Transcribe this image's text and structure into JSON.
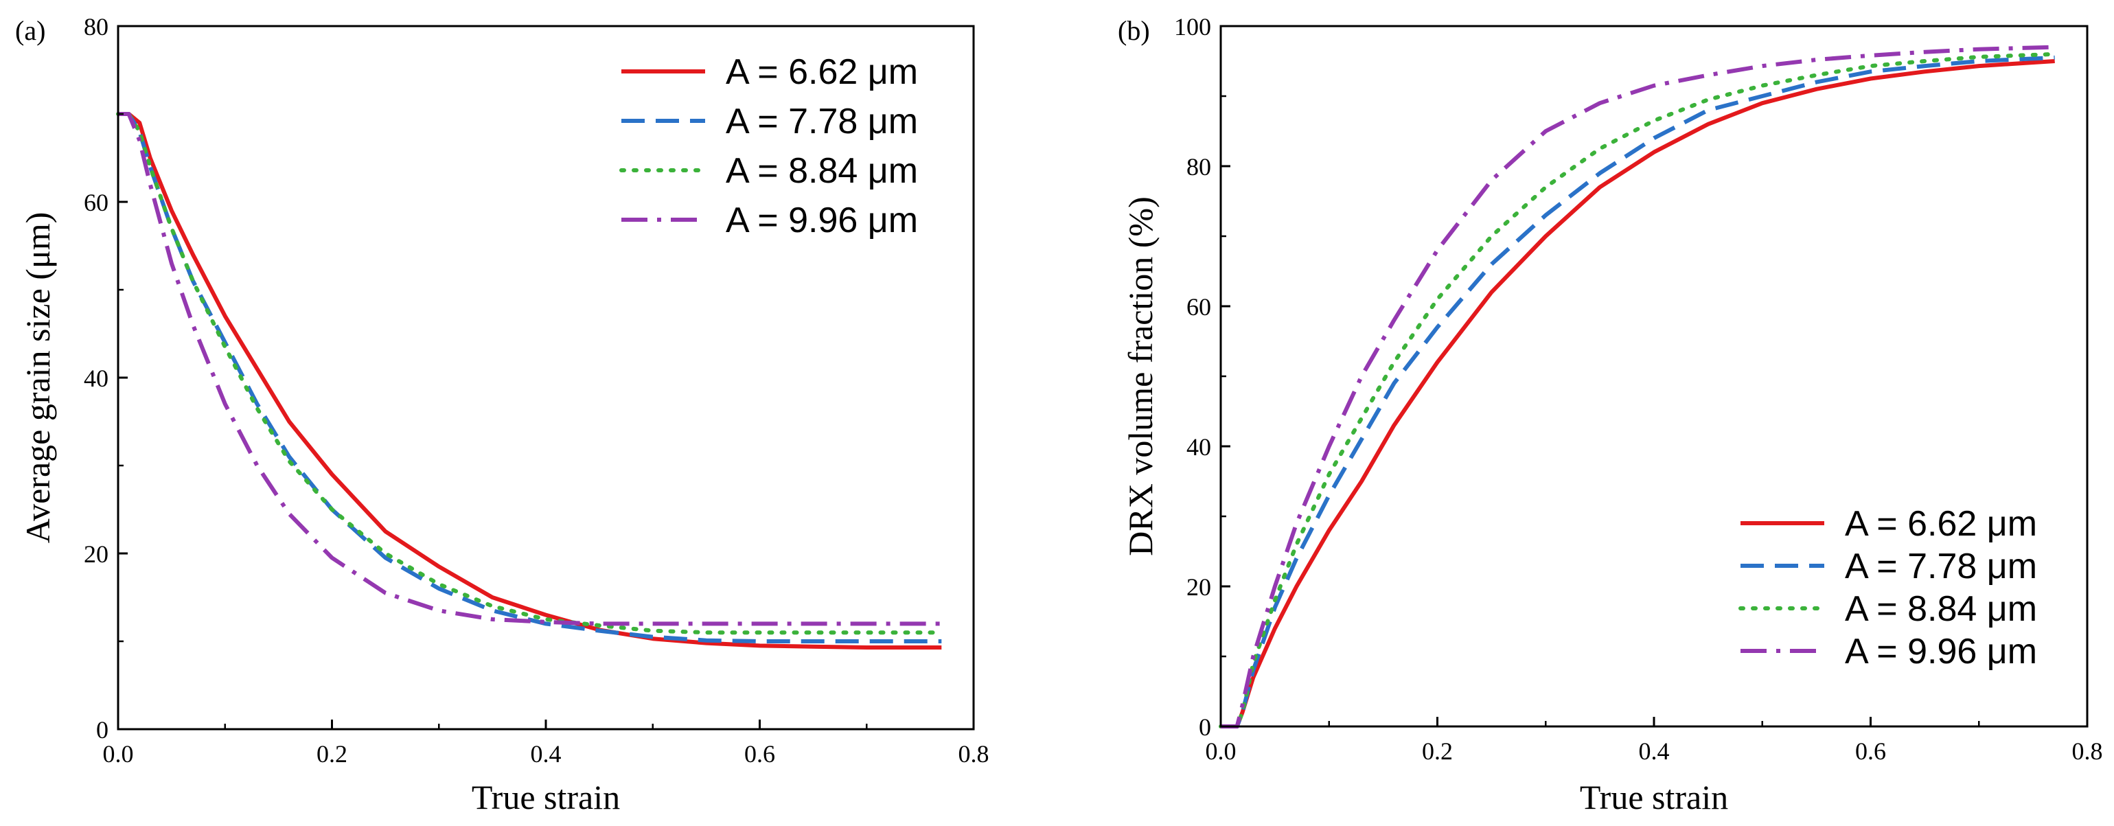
{
  "chart_data": [
    {
      "type": "line",
      "panel_label": "(a)",
      "xlabel": "True strain",
      "ylabel": "Average grain size (μm)",
      "xlim": [
        0,
        0.8
      ],
      "ylim": [
        0,
        80
      ],
      "xticks": [
        0,
        0.2,
        0.4,
        0.6,
        0.8
      ],
      "xtick_labels": [
        "0.0",
        "0.2",
        "0.4",
        "0.6",
        "0.8"
      ],
      "yticks": [
        0,
        20,
        40,
        60,
        80
      ],
      "ytick_labels": [
        "0",
        "20",
        "40",
        "60",
        "80"
      ],
      "grid": false,
      "legend_position": "top-right",
      "series": [
        {
          "name": "A = 6.62 μm",
          "color": "#e3191c",
          "dash": "solid",
          "x": [
            0.0,
            0.01,
            0.02,
            0.03,
            0.05,
            0.07,
            0.1,
            0.13,
            0.16,
            0.2,
            0.25,
            0.3,
            0.35,
            0.4,
            0.45,
            0.5,
            0.55,
            0.6,
            0.65,
            0.7,
            0.77
          ],
          "y": [
            70,
            70,
            69,
            65,
            59,
            54,
            47,
            41,
            35,
            29,
            22.5,
            18.5,
            15,
            13,
            11.3,
            10.3,
            9.8,
            9.5,
            9.4,
            9.3,
            9.3
          ]
        },
        {
          "name": "A = 7.78 μm",
          "color": "#2a72c8",
          "dash": "dashed",
          "x": [
            0.0,
            0.01,
            0.02,
            0.03,
            0.05,
            0.07,
            0.1,
            0.13,
            0.16,
            0.2,
            0.25,
            0.3,
            0.35,
            0.4,
            0.45,
            0.5,
            0.55,
            0.6,
            0.65,
            0.7,
            0.77
          ],
          "y": [
            70,
            70,
            68,
            64,
            57,
            51,
            44,
            37,
            31,
            25,
            19.5,
            16,
            13.5,
            12,
            11.2,
            10.5,
            10.1,
            10.0,
            10.0,
            10.0,
            10.0
          ]
        },
        {
          "name": "A = 8.84 μm",
          "color": "#3bb23a",
          "dash": "dotted",
          "x": [
            0.0,
            0.01,
            0.02,
            0.03,
            0.05,
            0.07,
            0.1,
            0.13,
            0.16,
            0.2,
            0.25,
            0.3,
            0.35,
            0.4,
            0.45,
            0.5,
            0.55,
            0.6,
            0.65,
            0.7,
            0.77
          ],
          "y": [
            70,
            70,
            68,
            64,
            57,
            51,
            43.5,
            36.5,
            30.5,
            25,
            20,
            16.5,
            14,
            12.5,
            11.8,
            11.2,
            11.0,
            11.0,
            11.0,
            11.0,
            11.0
          ]
        },
        {
          "name": "A = 9.96 μm",
          "color": "#9438b0",
          "dash": "dashdot",
          "x": [
            0.0,
            0.01,
            0.02,
            0.03,
            0.05,
            0.07,
            0.1,
            0.13,
            0.16,
            0.2,
            0.25,
            0.3,
            0.35,
            0.4,
            0.45,
            0.5,
            0.55,
            0.6,
            0.65,
            0.7,
            0.77
          ],
          "y": [
            70,
            70,
            67,
            62,
            53,
            46,
            37,
            30,
            24.5,
            19.5,
            15.5,
            13.5,
            12.5,
            12.2,
            12.0,
            12.0,
            12.0,
            12.0,
            12.0,
            12.0,
            12.0
          ]
        }
      ]
    },
    {
      "type": "line",
      "panel_label": "(b)",
      "xlabel": "True strain",
      "ylabel": "DRX volume fraction (%)",
      "xlim": [
        0,
        0.8
      ],
      "ylim": [
        0,
        100
      ],
      "xticks": [
        0,
        0.2,
        0.4,
        0.6,
        0.8
      ],
      "xtick_labels": [
        "0.0",
        "0.2",
        "0.4",
        "0.6",
        "0.8"
      ],
      "yticks": [
        0,
        20,
        40,
        60,
        80,
        100
      ],
      "ytick_labels": [
        "0",
        "20",
        "40",
        "60",
        "80",
        "100"
      ],
      "grid": false,
      "legend_position": "bottom-right",
      "series": [
        {
          "name": "A = 6.62 μm",
          "color": "#e3191c",
          "dash": "solid",
          "x": [
            0.0,
            0.015,
            0.02,
            0.03,
            0.05,
            0.07,
            0.1,
            0.13,
            0.16,
            0.2,
            0.25,
            0.3,
            0.35,
            0.4,
            0.45,
            0.5,
            0.55,
            0.6,
            0.65,
            0.7,
            0.77
          ],
          "y": [
            0,
            0,
            2,
            7,
            14,
            20,
            28,
            35,
            43,
            52,
            62,
            70,
            77,
            82,
            86,
            89,
            91,
            92.5,
            93.5,
            94.3,
            95
          ]
        },
        {
          "name": "A = 7.78 μm",
          "color": "#2a72c8",
          "dash": "dashed",
          "x": [
            0.0,
            0.015,
            0.02,
            0.03,
            0.05,
            0.07,
            0.1,
            0.13,
            0.16,
            0.2,
            0.25,
            0.3,
            0.35,
            0.4,
            0.45,
            0.5,
            0.55,
            0.6,
            0.65,
            0.7,
            0.77
          ],
          "y": [
            0,
            0,
            2,
            8,
            17,
            24,
            33,
            41,
            49,
            57,
            66,
            73,
            79,
            84,
            88,
            90,
            92,
            93.5,
            94.3,
            95,
            95.5
          ]
        },
        {
          "name": "A = 8.84 μm",
          "color": "#3bb23a",
          "dash": "dotted",
          "x": [
            0.0,
            0.015,
            0.02,
            0.03,
            0.05,
            0.07,
            0.1,
            0.13,
            0.16,
            0.2,
            0.25,
            0.3,
            0.35,
            0.4,
            0.45,
            0.5,
            0.55,
            0.6,
            0.65,
            0.7,
            0.77
          ],
          "y": [
            0,
            0,
            2,
            9,
            18,
            26,
            36,
            44,
            52,
            61,
            70,
            77,
            82.5,
            86.5,
            89.5,
            91.5,
            93,
            94.3,
            95,
            95.6,
            96
          ]
        },
        {
          "name": "A = 9.96 μm",
          "color": "#9438b0",
          "dash": "dashdot",
          "x": [
            0.0,
            0.015,
            0.02,
            0.03,
            0.05,
            0.07,
            0.1,
            0.13,
            0.16,
            0.2,
            0.25,
            0.3,
            0.35,
            0.4,
            0.45,
            0.5,
            0.55,
            0.6,
            0.65,
            0.7,
            0.77
          ],
          "y": [
            0,
            0,
            3,
            10,
            20,
            29,
            40,
            50,
            58,
            68,
            78,
            85,
            89,
            91.5,
            93,
            94.3,
            95.2,
            95.8,
            96.3,
            96.7,
            97
          ]
        }
      ]
    }
  ]
}
